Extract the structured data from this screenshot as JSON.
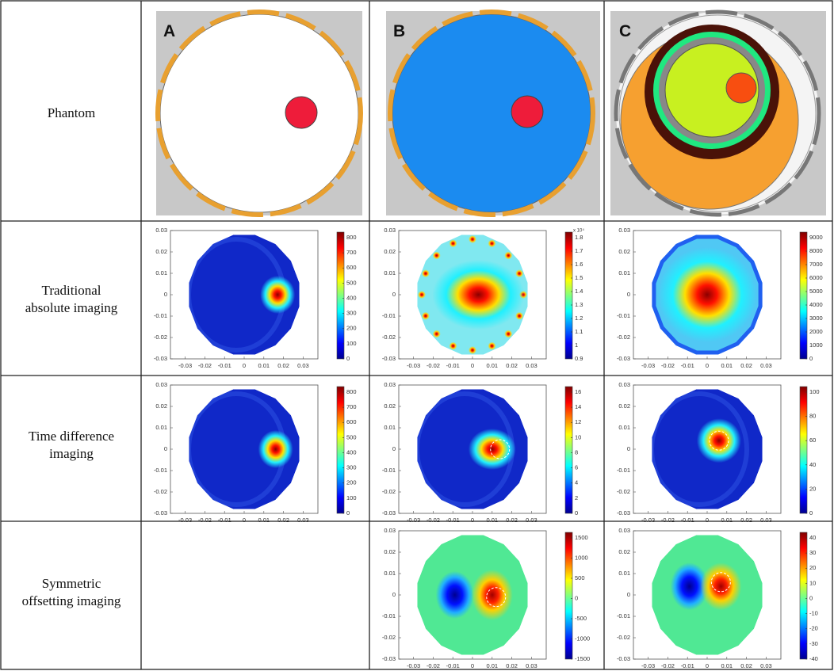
{
  "row_labels": [
    "Phantom",
    "Traditional absolute imaging",
    "Time difference imaging",
    "Symmetric offsetting imaging"
  ],
  "panel_labels": [
    "A",
    "B",
    "C"
  ],
  "axis_ticks": [
    -0.03,
    -0.02,
    -0.01,
    0,
    0.01,
    0.02,
    0.03
  ],
  "plots": [
    {
      "colorbar_ticks": [
        0,
        100,
        200,
        300,
        400,
        500,
        600,
        700,
        800
      ]
    },
    {
      "colorbar_ticks": [
        0.9,
        1,
        1.1,
        1.2,
        1.3,
        1.4,
        1.5,
        1.6,
        1.7,
        1.8
      ],
      "colorbar_multiplier": "x 10⁴"
    },
    {
      "colorbar_ticks": [
        0,
        1000,
        2000,
        3000,
        4000,
        5000,
        6000,
        7000,
        8000,
        9000
      ]
    },
    {
      "colorbar_ticks": [
        0,
        100,
        200,
        300,
        400,
        500,
        600,
        700,
        800
      ]
    },
    {
      "colorbar_ticks": [
        0,
        2,
        4,
        6,
        8,
        10,
        12,
        14,
        16
      ]
    },
    {
      "colorbar_ticks": [
        0,
        20,
        40,
        60,
        80,
        100
      ]
    },
    {
      "colorbar_ticks": [
        -1500,
        -1000,
        -500,
        0,
        500,
        1000,
        1500
      ]
    },
    {
      "colorbar_ticks": [
        -40,
        -30,
        -20,
        -10,
        0,
        10,
        20,
        30,
        40
      ]
    }
  ]
}
